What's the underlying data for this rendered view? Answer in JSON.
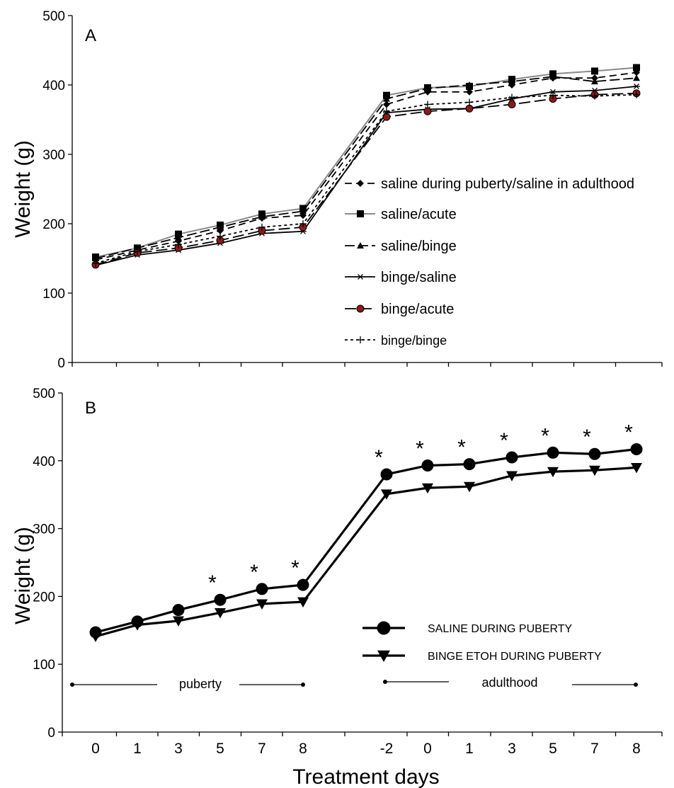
{
  "chart_data": [
    {
      "panel_label": "A",
      "type": "line",
      "ylabel": "Weight (g)",
      "ylim": [
        0,
        500
      ],
      "yticks": [
        0,
        100,
        200,
        300,
        400,
        500
      ],
      "legend_position": "center-right",
      "series": [
        {
          "name": "saline during puberty/saline in adulthood",
          "marker": "diamond",
          "dash": "10,6",
          "color": "#000000",
          "values": [
            148,
            162,
            175,
            190,
            208,
            212,
            372,
            390,
            390,
            400,
            410,
            410,
            418
          ]
        },
        {
          "name": "saline/acute",
          "marker": "square",
          "dash": "",
          "color": "#8a8a8a",
          "values": [
            152,
            165,
            185,
            198,
            214,
            222,
            385,
            396,
            398,
            408,
            416,
            420,
            425
          ]
        },
        {
          "name": "saline/binge",
          "marker": "triangle",
          "dash": "14,5",
          "color": "#000000",
          "values": [
            150,
            165,
            180,
            195,
            210,
            218,
            380,
            395,
            400,
            405,
            412,
            405,
            410
          ]
        },
        {
          "name": "binge/saline",
          "marker": "asterisk",
          "dash": "",
          "color": "#000000",
          "values": [
            140,
            155,
            162,
            172,
            186,
            189,
            360,
            365,
            366,
            380,
            390,
            392,
            398
          ]
        },
        {
          "name": "binge/acute",
          "marker": "circle",
          "dash": "16,6",
          "color": "#000000",
          "values": [
            141,
            158,
            165,
            176,
            190,
            195,
            354,
            362,
            366,
            372,
            380,
            386,
            388
          ]
        },
        {
          "name": "binge/binge",
          "marker": "plus",
          "dash": "4,4",
          "color": "#000000",
          "values": [
            143,
            160,
            170,
            182,
            195,
            200,
            362,
            372,
            375,
            382,
            385,
            384,
            386
          ]
        }
      ]
    },
    {
      "panel_label": "B",
      "type": "line",
      "xlabel": "Treatment days",
      "ylabel": "Weight (g)",
      "ylim": [
        0,
        500
      ],
      "yticks": [
        0,
        100,
        200,
        300,
        400,
        500
      ],
      "categories": [
        "0",
        "1",
        "3",
        "5",
        "7",
        "8",
        "-2",
        "0",
        "1",
        "3",
        "5",
        "7",
        "8"
      ],
      "legend_position": "bottom-right",
      "series": [
        {
          "name": "SALINE DURING PUBERTY",
          "marker": "circle",
          "values": [
            147,
            163,
            180,
            195,
            211,
            217,
            380,
            393,
            395,
            405,
            412,
            410,
            417
          ]
        },
        {
          "name": "BINGE ETOH DURING PUBERTY",
          "marker": "triangle-down",
          "values": [
            141,
            158,
            164,
            176,
            189,
            192,
            351,
            360,
            362,
            378,
            384,
            386,
            390
          ]
        }
      ],
      "significance": {
        "symbol": "*",
        "categories_index": [
          3,
          4,
          5,
          6,
          7,
          8,
          9,
          10,
          11,
          12
        ]
      },
      "periods": [
        {
          "label": "puberty"
        },
        {
          "label": "adulthood"
        }
      ]
    }
  ]
}
